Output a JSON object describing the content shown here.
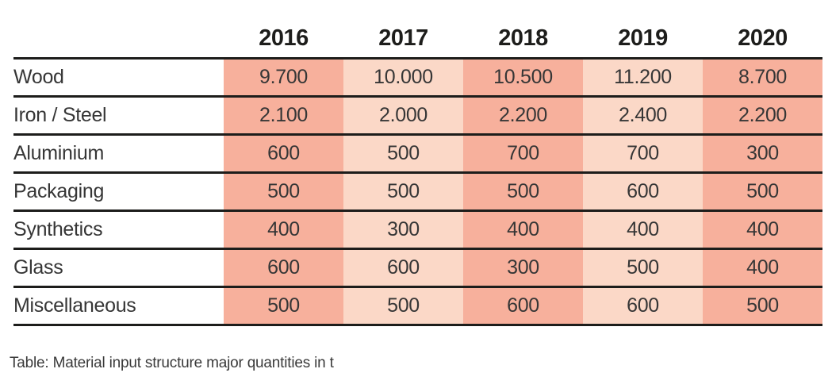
{
  "table": {
    "columns": [
      "2016",
      "2017",
      "2018",
      "2019",
      "2020"
    ],
    "rows": [
      {
        "label": "Wood",
        "values": [
          "9.700",
          "10.000",
          "10.500",
          "11.200",
          "8.700"
        ]
      },
      {
        "label": "Iron / Steel",
        "values": [
          "2.100",
          "2.000",
          "2.200",
          "2.400",
          "2.200"
        ]
      },
      {
        "label": "Aluminium",
        "values": [
          "600",
          "500",
          "700",
          "700",
          "300"
        ]
      },
      {
        "label": "Packaging",
        "values": [
          "500",
          "500",
          "500",
          "600",
          "500"
        ]
      },
      {
        "label": "Synthetics",
        "values": [
          "400",
          "300",
          "400",
          "400",
          "400"
        ]
      },
      {
        "label": "Glass",
        "values": [
          "600",
          "600",
          "300",
          "500",
          "400"
        ]
      },
      {
        "label": "Miscellaneous",
        "values": [
          "500",
          "500",
          "600",
          "600",
          "500"
        ]
      }
    ],
    "caption": "Table: Material input structure major quantities in t"
  },
  "chart_data": {
    "type": "table",
    "title": "Material input structure major quantities in t",
    "categories": [
      "2016",
      "2017",
      "2018",
      "2019",
      "2020"
    ],
    "series": [
      {
        "name": "Wood",
        "values": [
          9700,
          10000,
          10500,
          11200,
          8700
        ]
      },
      {
        "name": "Iron / Steel",
        "values": [
          2100,
          2000,
          2200,
          2400,
          2200
        ]
      },
      {
        "name": "Aluminium",
        "values": [
          600,
          500,
          700,
          700,
          300
        ]
      },
      {
        "name": "Packaging",
        "values": [
          500,
          500,
          500,
          600,
          500
        ]
      },
      {
        "name": "Synthetics",
        "values": [
          400,
          300,
          400,
          400,
          400
        ]
      },
      {
        "name": "Glass",
        "values": [
          600,
          600,
          300,
          500,
          400
        ]
      },
      {
        "name": "Miscellaneous",
        "values": [
          500,
          500,
          600,
          600,
          500
        ]
      }
    ],
    "unit": "t"
  },
  "colors": {
    "shade_dark": "#f7b09c",
    "shade_light": "#fbd8c7",
    "rule": "#1d1d1b",
    "text": "#363636",
    "caption": "#3a3a3a"
  }
}
